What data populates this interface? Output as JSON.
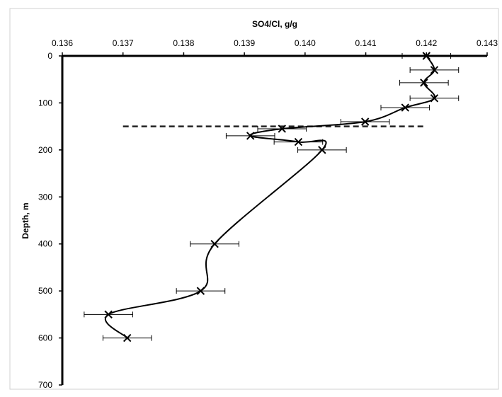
{
  "chart_data": {
    "type": "line",
    "x_label": "SO4/Cl, g/g",
    "y_label": "Depth, m",
    "x": [
      0.142,
      0.14213,
      0.14196,
      0.14213,
      0.14165,
      0.14099,
      0.13962,
      0.1391,
      0.13989,
      0.14028,
      0.13851,
      0.13828,
      0.13676,
      0.13707
    ],
    "values": [
      0,
      30,
      57,
      90,
      110,
      140,
      155,
      170,
      183,
      200,
      400,
      500,
      550,
      600
    ],
    "errors": [
      0.0004,
      0.0004,
      0.0004,
      0.0004,
      0.0004,
      0.0004,
      0.0004,
      0.0004,
      0.0004,
      0.0004,
      0.0004,
      0.0004,
      0.0004,
      0.0004
    ],
    "color": "#000000",
    "reference_line": {
      "y": 150,
      "x": [
        0.137,
        0.142
      ],
      "style": "dashed"
    },
    "xlim": [
      0.136,
      0.143
    ],
    "xticks": [
      0.136,
      0.137,
      0.138,
      0.139,
      {
        "value": 0.14,
        "label": "0.140"
      },
      0.141,
      0.142,
      0.143
    ],
    "ylim": [
      0,
      700
    ],
    "yticks": [
      0,
      100,
      200,
      300,
      400,
      500,
      600,
      700
    ],
    "y_inverted": true,
    "x_axis_position": "top",
    "grid": false
  }
}
